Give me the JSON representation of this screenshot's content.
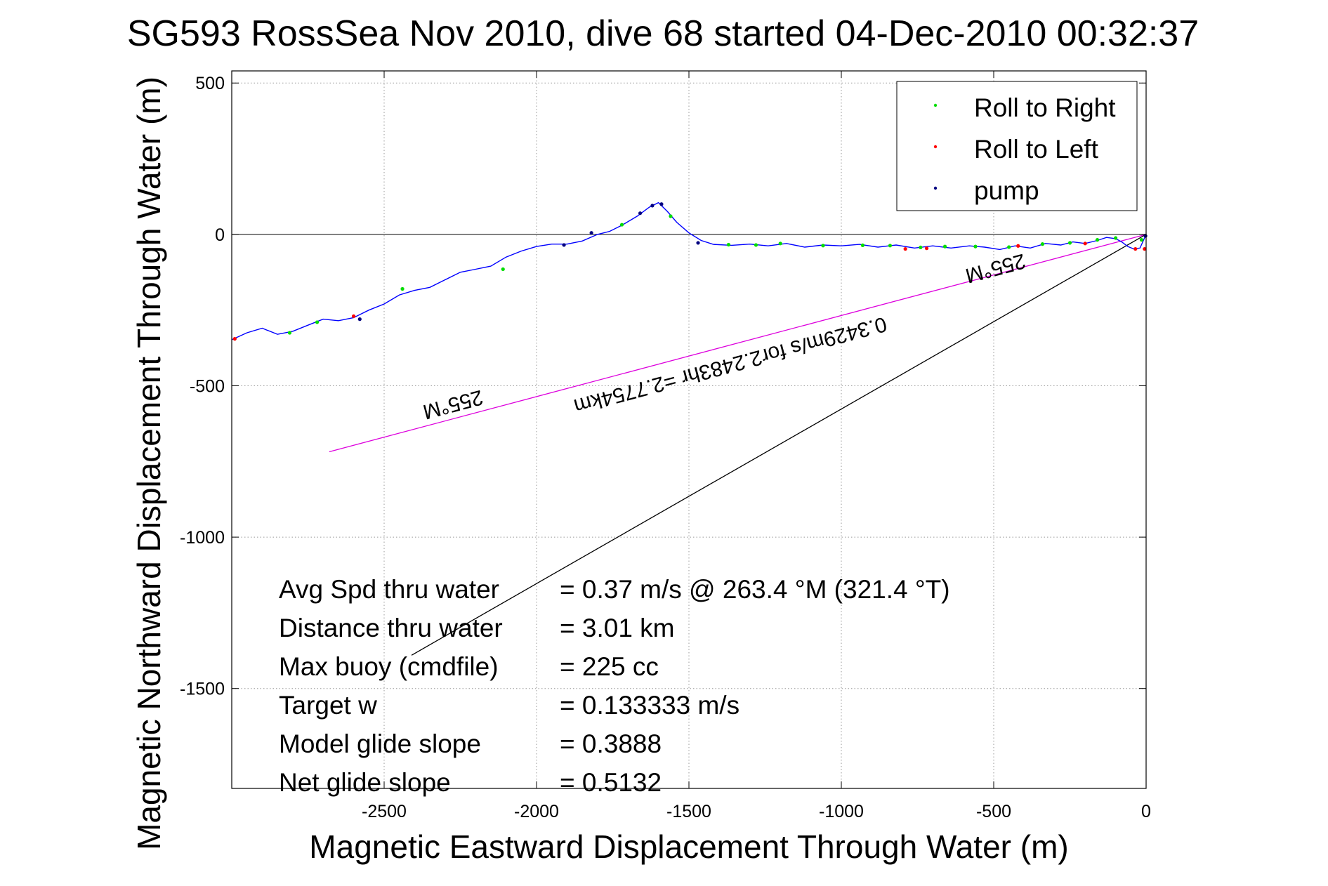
{
  "chart_data": {
    "type": "line",
    "title": "SG593 RossSea Nov 2010, dive 68 started 04-Dec-2010 00:32:37",
    "xlabel": "Magnetic Eastward Displacement Through Water (m)",
    "ylabel": "Magnetic Northward Displacement Through Water (m)",
    "xlim": [
      -3000,
      0
    ],
    "ylim": [
      -1830,
      540
    ],
    "xticks": [
      -2500,
      -2000,
      -1500,
      -1000,
      -500,
      0
    ],
    "xtick_labels": [
      "-2500",
      "-2000",
      "-1500",
      "-1000",
      "-500",
      "0"
    ],
    "yticks": [
      500,
      0,
      -500,
      -1000,
      -1500
    ],
    "ytick_labels": [
      "500",
      "0",
      "-500",
      "-1000",
      "-1500"
    ],
    "grid": true,
    "legend_position": "top-right",
    "legend": [
      {
        "label": "Roll to Right",
        "color": "#00dd00"
      },
      {
        "label": "Roll to Left",
        "color": "#ff0000"
      },
      {
        "label": "pump",
        "color": "#000080"
      }
    ],
    "track": {
      "color": "#0000ff",
      "x": [
        0,
        -20,
        -40,
        -60,
        -80,
        -100,
        -130,
        -160,
        -200,
        -240,
        -280,
        -330,
        -380,
        -430,
        -480,
        -530,
        -580,
        -640,
        -700,
        -760,
        -820,
        -880,
        -940,
        -1000,
        -1060,
        -1120,
        -1180,
        -1240,
        -1300,
        -1360,
        -1420,
        -1460,
        -1500,
        -1540,
        -1570,
        -1600,
        -1630,
        -1670,
        -1720,
        -1760,
        -1800,
        -1850,
        -1900,
        -1950,
        -2000,
        -2050,
        -2100,
        -2150,
        -2200,
        -2250,
        -2300,
        -2350,
        -2400,
        -2450,
        -2500,
        -2550,
        -2600,
        -2650,
        -2700,
        -2750,
        -2800,
        -2850,
        -2900,
        -2950,
        -3000
      ],
      "y": [
        0,
        -45,
        -48,
        -40,
        -25,
        -14,
        -10,
        -20,
        -30,
        -25,
        -35,
        -30,
        -45,
        -38,
        -50,
        -42,
        -38,
        -45,
        -38,
        -45,
        -35,
        -42,
        -33,
        -38,
        -35,
        -42,
        -30,
        -38,
        -32,
        -36,
        -33,
        -20,
        5,
        40,
        75,
        105,
        90,
        60,
        30,
        10,
        0,
        -22,
        -32,
        -32,
        -40,
        -55,
        -75,
        -105,
        -115,
        -125,
        -150,
        -175,
        -185,
        -200,
        -230,
        -250,
        -275,
        -285,
        -280,
        -300,
        -320,
        -330,
        -310,
        -325,
        -348
      ]
    },
    "roll_right_points": [
      [
        -15,
        -18
      ],
      [
        -100,
        -12
      ],
      [
        -160,
        -18
      ],
      [
        -250,
        -28
      ],
      [
        -340,
        -32
      ],
      [
        -450,
        -42
      ],
      [
        -560,
        -40
      ],
      [
        -660,
        -40
      ],
      [
        -740,
        -43
      ],
      [
        -840,
        -37
      ],
      [
        -930,
        -36
      ],
      [
        -1060,
        -37
      ],
      [
        -1200,
        -30
      ],
      [
        -1280,
        -35
      ],
      [
        -1370,
        -34
      ],
      [
        -1560,
        60
      ],
      [
        -1720,
        32
      ],
      [
        -2110,
        -115
      ],
      [
        -2440,
        -180
      ],
      [
        -2720,
        -290
      ],
      [
        -2810,
        -325
      ]
    ],
    "roll_left_points": [
      [
        -5,
        -48
      ],
      [
        -35,
        -48
      ],
      [
        -200,
        -30
      ],
      [
        -420,
        -38
      ],
      [
        -720,
        -46
      ],
      [
        -790,
        -48
      ],
      [
        -2600,
        -270
      ],
      [
        -2990,
        -345
      ]
    ],
    "pump_points": [
      [
        -2,
        -5
      ],
      [
        -1470,
        -28
      ],
      [
        -1590,
        100
      ],
      [
        -1620,
        95
      ],
      [
        -1660,
        70
      ],
      [
        -1820,
        5
      ],
      [
        -1910,
        -35
      ],
      [
        -2580,
        -280
      ]
    ],
    "heading_lines": [
      {
        "color": "#dd00dd",
        "x": [
          0,
          -2680
        ],
        "y": [
          0,
          -718
        ]
      },
      {
        "color": "#000000",
        "x": [
          0,
          -2410
        ],
        "y": [
          0,
          -1390
        ]
      }
    ],
    "annotations": [
      {
        "text": "255°M",
        "x": -2280,
        "y": -540,
        "angle": 165
      },
      {
        "text": "0.3429m/s for2.2483hr =2.7754km",
        "x": -1370,
        "y": -410,
        "angle": 165
      },
      {
        "text": "255°M",
        "x": -500,
        "y": -90,
        "angle": 165
      }
    ],
    "stats": [
      {
        "label": "Avg Spd thru water",
        "value": "=  0.37 m/s @ 263.4 °M (321.4 °T)"
      },
      {
        "label": "Distance thru water",
        "value": "=  3.01 km"
      },
      {
        "label": "Max buoy (cmdfile)",
        "value": "= 225 cc"
      },
      {
        "label": "Target w",
        "value": "= 0.133333 m/s"
      },
      {
        "label": "Model glide slope",
        "value": "= 0.3888"
      },
      {
        "label": "Net glide slope",
        "value": "= 0.5132"
      }
    ]
  }
}
